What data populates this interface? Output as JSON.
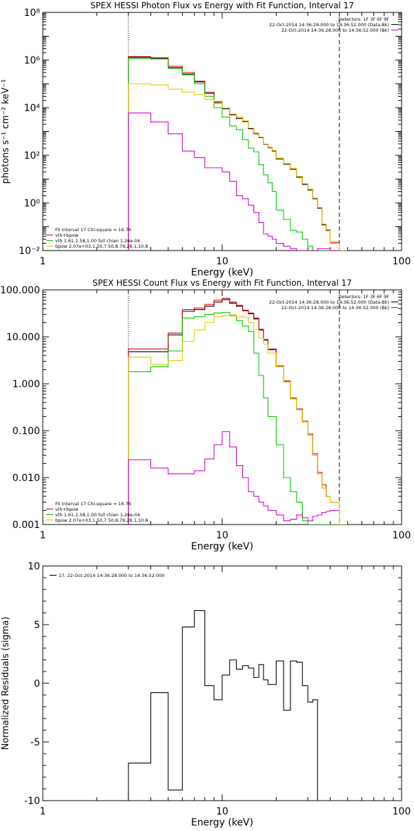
{
  "chart_data": [
    {
      "type": "line",
      "title": "SPEX HESSI Photon Flux vs Energy with Fit Function, Interval 17",
      "xlabel": "Energy (keV)",
      "ylabel": "photons s⁻¹ cm⁻² keV⁻¹",
      "xscale": "log",
      "yscale": "log",
      "xlim": [
        1,
        100
      ],
      "ylim": [
        0.01,
        100000000
      ],
      "xticks": [
        1,
        10,
        100
      ],
      "xtick_labels": [
        "1",
        "10",
        "100"
      ],
      "yticks": [
        0.01,
        1,
        100,
        10000,
        1000000,
        100000000
      ],
      "ytick_labels": [
        "10⁻²",
        "10⁰",
        "10²",
        "10⁴",
        "10⁶",
        "10⁸"
      ],
      "vlines": [
        {
          "x": 3,
          "style": "dotted"
        },
        {
          "x": 45,
          "style": "dashed"
        }
      ],
      "legend_tr": {
        "position": "top-right",
        "lines": [
          "Detectors: 1F 3F 6F 9F",
          "22-Oct-2014 14:36:28.000 to 14:36:52.000 (Data-Bk)",
          "22-Oct-2014 14:36:28.000 to 14:36:52.000 (Bk)"
        ],
        "colors": [
          "none",
          "#000000",
          "#d200d2"
        ]
      },
      "legend_bl": {
        "position": "bottom-left",
        "lines": [
          "Fit Interval 17    Chi-square = 16.76",
          "vth+bpow",
          "vth 1.61,1.58,1.00  full chian 1.26e-04",
          "bpow 2.07e+03,1.50,7.50,8.79,28.1,10.8"
        ],
        "colors": [
          "none",
          "#e00000",
          "#00c800",
          "#e6c800"
        ]
      },
      "edges": [
        3,
        3.5,
        4,
        4.5,
        5,
        5.5,
        6,
        6.5,
        7,
        7.5,
        8,
        8.5,
        9,
        9.5,
        10,
        10.5,
        11,
        11.5,
        12,
        13,
        14,
        15,
        16,
        17,
        18,
        19,
        20,
        22,
        24,
        26,
        28,
        30,
        32,
        34,
        36,
        38,
        40,
        45,
        50
      ],
      "series": [
        {
          "color": "#000000",
          "values": [
            1300000,
            1300000,
            1150000,
            1150000,
            480000,
            480000,
            260000,
            260000,
            120000,
            120000,
            40000,
            40000,
            16000,
            16000,
            9000,
            9000,
            5000,
            5000,
            3500,
            2600,
            1300,
            800,
            550,
            290,
            210,
            150,
            70,
            42,
            26,
            12,
            6,
            3.5,
            1.5,
            0.6,
            0.12,
            0.07,
            0.02,
            null
          ]
        },
        {
          "color": "#e00000",
          "values": [
            1400000,
            1400000,
            1250000,
            1250000,
            550000,
            550000,
            300000,
            300000,
            130000,
            130000,
            45000,
            45000,
            18000,
            18000,
            10000,
            10000,
            5500,
            5500,
            4000,
            2800,
            1400,
            850,
            580,
            300,
            220,
            160,
            75,
            45,
            28,
            13,
            6.5,
            3.8,
            1.6,
            0.65,
            0.13,
            0.075,
            0.022,
            null
          ]
        },
        {
          "color": "#00c800",
          "values": [
            1150000,
            1150000,
            1100000,
            1100000,
            450000,
            450000,
            240000,
            240000,
            100000,
            100000,
            30000,
            30000,
            10000,
            10000,
            4000,
            4000,
            1700,
            1700,
            1200,
            450,
            200,
            140,
            40,
            15,
            7,
            3,
            0.5,
            0.2,
            0.07,
            0.06,
            0.03,
            0.015,
            0.01,
            0.01,
            0.01,
            0.01,
            0.01,
            null
          ]
        },
        {
          "color": "#e6c800",
          "values": [
            100000,
            100000,
            90000,
            90000,
            60000,
            60000,
            45000,
            45000,
            35000,
            35000,
            22000,
            22000,
            17000,
            17000,
            10000,
            10000,
            5500,
            5500,
            4000,
            2800,
            1400,
            850,
            580,
            300,
            220,
            160,
            75,
            45,
            28,
            13,
            6.5,
            3.8,
            1.6,
            0.65,
            0.13,
            0.075,
            0.02,
            0.01
          ]
        },
        {
          "color": "#d200d2",
          "values": [
            6000,
            6000,
            2500,
            2500,
            800,
            800,
            150,
            150,
            80,
            80,
            30,
            30,
            30,
            30,
            20,
            20,
            8,
            8,
            2,
            1.5,
            0.8,
            0.4,
            0.15,
            0.05,
            0.04,
            0.03,
            0.02,
            0.015,
            0.012,
            0.01,
            0.01,
            0.01,
            0.01,
            0.012,
            0.012,
            0.012,
            0.01,
            null
          ]
        }
      ]
    },
    {
      "type": "line",
      "title": "SPEX HESSI Count Flux vs Energy with Fit Function, Interval 17",
      "xlabel": "Energy (keV)",
      "ylabel": "",
      "xscale": "log",
      "yscale": "log",
      "xlim": [
        1,
        100
      ],
      "ylim": [
        0.001,
        100
      ],
      "xticks": [
        1,
        10,
        100
      ],
      "xtick_labels": [
        "1",
        "10",
        "100"
      ],
      "yticks": [
        0.001,
        0.01,
        0.1,
        1,
        10,
        100
      ],
      "ytick_labels": [
        "0.001",
        "0.010",
        "0.100",
        "1.000",
        "10.000",
        "100.000"
      ],
      "vlines": [
        {
          "x": 3,
          "style": "dotted"
        },
        {
          "x": 45,
          "style": "dashed"
        }
      ],
      "legend_tr": {
        "position": "top-right",
        "lines": [
          "Detectors: 1F 3F 6F 9F",
          "22-Oct-2014 14:36:28.000 to 14:36:52.000 (Data-Bk)",
          "22-Oct-2014 14:36:28.000 to 14:36:52.000 (Bk)"
        ],
        "colors": [
          "none",
          "#000000",
          "#d200d2"
        ]
      },
      "legend_bl": {
        "position": "bottom-left",
        "lines": [
          "Fit Interval 17    Chi-square = 16.76",
          "vth+bpow",
          "vth 1.61,1.58,1.00  full chian 1.26e-04",
          "bpow 2.07e+03,1.50,7.50,8.79,28.1,10.8"
        ],
        "colors": [
          "none",
          "#e00000",
          "#00c800",
          "#e6c800"
        ]
      },
      "edges": [
        3,
        4,
        5,
        6,
        7,
        8,
        9,
        10,
        11,
        12,
        13,
        14,
        15,
        16,
        17,
        18,
        20,
        22,
        24,
        26,
        28,
        30,
        32,
        34,
        36,
        38,
        40,
        45,
        50
      ],
      "series": [
        {
          "color": "#000000",
          "values": [
            4.8,
            4.8,
            11,
            35,
            38,
            45,
            55,
            62,
            52,
            45,
            36,
            31,
            24,
            14,
            8.5,
            5.3,
            2.3,
            1.1,
            0.48,
            0.28,
            0.15,
            0.08,
            0.03,
            0.012,
            0.006,
            0.004,
            0.003,
            null
          ]
        },
        {
          "color": "#e00000",
          "values": [
            5.5,
            5.5,
            12,
            38,
            41,
            49,
            60,
            66,
            55,
            47,
            37,
            32,
            25,
            14.5,
            8.8,
            5.5,
            2.4,
            1.15,
            0.5,
            0.29,
            0.16,
            0.085,
            0.032,
            0.013,
            0.007,
            0.004,
            0.003,
            null
          ]
        },
        {
          "color": "#00c800",
          "values": [
            1.8,
            2.3,
            5,
            25,
            27,
            30,
            32,
            33,
            28,
            22,
            17,
            13,
            4.5,
            1.5,
            0.5,
            0.2,
            0.05,
            0.01,
            0.005,
            0.003,
            0.0012,
            0.001,
            0.001,
            0.001,
            0.001,
            0.001,
            0.001,
            null
          ]
        },
        {
          "color": "#e6c800",
          "values": [
            3.7,
            2.6,
            3.1,
            8,
            14,
            20,
            27,
            28,
            30,
            27,
            26,
            20,
            14,
            9.5,
            7,
            4.5,
            2.3,
            1.1,
            0.48,
            0.28,
            0.15,
            0.08,
            0.03,
            0.012,
            0.006,
            0.004,
            0.003,
            0.001
          ]
        },
        {
          "color": "#d200d2",
          "values": [
            0.024,
            0.016,
            0.012,
            0.012,
            0.014,
            0.025,
            0.05,
            0.095,
            0.045,
            0.018,
            0.01,
            0.005,
            0.004,
            0.003,
            0.0025,
            0.002,
            0.0016,
            0.0012,
            0.0013,
            0.0016,
            0.0014,
            0.0012,
            0.0015,
            0.0016,
            0.0018,
            0.0019,
            0.002,
            null
          ]
        }
      ]
    },
    {
      "type": "line",
      "title": "",
      "xlabel": "Energy (keV)",
      "ylabel": "Normalized Residuals (sigma)",
      "xscale": "log",
      "yscale": "linear",
      "xlim": [
        1,
        100
      ],
      "ylim": [
        -10,
        10
      ],
      "xticks": [
        1,
        10,
        100
      ],
      "xtick_labels": [
        "1",
        "10",
        "100"
      ],
      "yticks": [
        -10,
        -5,
        0,
        5,
        10
      ],
      "ytick_labels": [
        "-10",
        "-5",
        "0",
        "5",
        "10"
      ],
      "vlines": [],
      "legend_tr": null,
      "legend_bl": null,
      "legend_tl": {
        "position": "top-left",
        "lines": [
          "17. 22-Oct-2014 14:36:28.000 to 14:36:52.000"
        ],
        "colors": [
          "#000000"
        ]
      },
      "edges": [
        3,
        4,
        5,
        6,
        7,
        8,
        9,
        10,
        11,
        12,
        13,
        14,
        15,
        16,
        17,
        18,
        20,
        22,
        24,
        26,
        28,
        30,
        32,
        34,
        36,
        38,
        40,
        45
      ],
      "series": [
        {
          "color": "#000000",
          "drop_to": -10,
          "values": [
            -6.8,
            -0.8,
            -9.1,
            4.8,
            6.2,
            -0.2,
            -1.4,
            0.7,
            2.0,
            1.2,
            1.5,
            1.3,
            0.5,
            1.6,
            0.3,
            -0.1,
            1.9,
            -2.3,
            1.9,
            1.8,
            -0.2,
            -1.6,
            -1.4
          ]
        }
      ]
    }
  ]
}
